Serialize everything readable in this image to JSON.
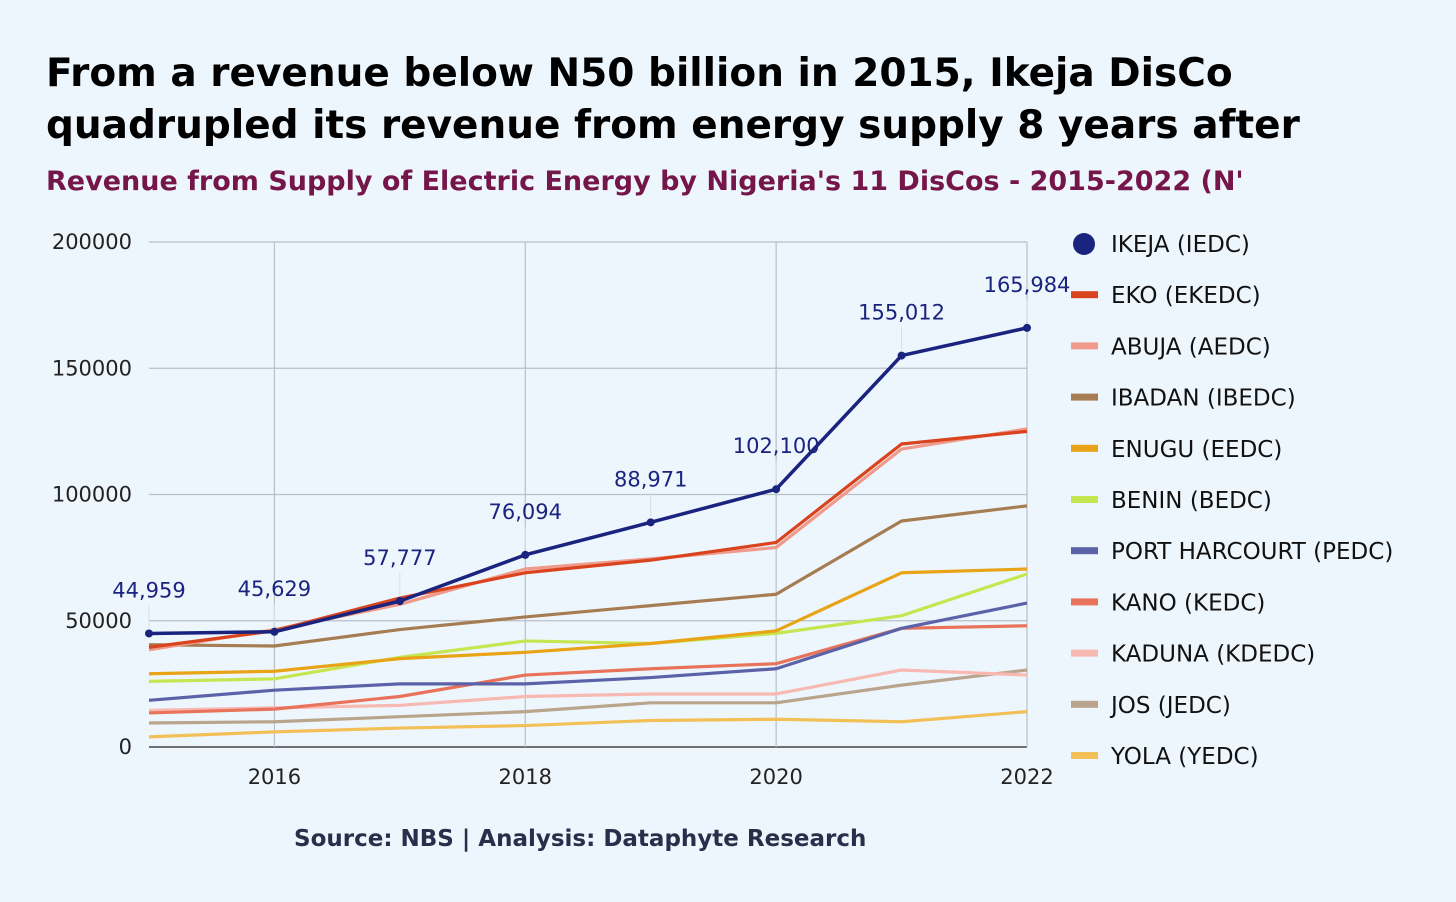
{
  "title": "From a revenue below N50 billion in 2015, Ikeja DisCo quadrupled its revenue from energy supply 8 years after",
  "subtitle": "Revenue from Supply of Electric Energy by Nigeria's 11 DisCos - 2015-2022 (N'",
  "source": "Source: NBS | Analysis: Dataphyte Research",
  "chart_data": {
    "type": "line",
    "x": [
      2015,
      2016,
      2017,
      2018,
      2019,
      2020,
      2021,
      2022
    ],
    "xticks": [
      "2016",
      "2018",
      "2020",
      "2022"
    ],
    "xlim": [
      2015,
      2022
    ],
    "ylim": [
      0,
      200000
    ],
    "yticks": [
      "0",
      "50000",
      "100000",
      "150000",
      "200000"
    ],
    "grid": true,
    "legend_position": "right",
    "series": [
      {
        "name": "IKEJA (IEDC)",
        "color": "#1a237e",
        "marker": true,
        "values": [
          44959,
          45629,
          57777,
          76094,
          88971,
          102100,
          155012,
          165984
        ],
        "labels": [
          "44,959",
          "45,629",
          "57,777",
          "76,094",
          "88,971",
          "102,100",
          "155,012",
          "165,984"
        ]
      },
      {
        "name": "EKO (EKEDC)",
        "color": "#d9441e",
        "values": [
          39500,
          46000,
          59000,
          69000,
          74000,
          81000,
          120000,
          125000
        ]
      },
      {
        "name": "ABUJA (AEDC)",
        "color": "#ef9a8a",
        "values": [
          38500,
          46500,
          56500,
          70500,
          74500,
          79000,
          118000,
          126000
        ]
      },
      {
        "name": "IBADAN (IBEDC)",
        "color": "#a67c52",
        "values": [
          40500,
          40000,
          46500,
          51500,
          56000,
          60500,
          89500,
          95500
        ]
      },
      {
        "name": "ENUGU (EEDC)",
        "color": "#e8a317",
        "values": [
          29000,
          30000,
          35000,
          37500,
          41000,
          46000,
          69000,
          70500
        ]
      },
      {
        "name": "BENIN (BEDC)",
        "color": "#c6e651",
        "values": [
          26000,
          27000,
          35500,
          42000,
          41000,
          45000,
          52000,
          68500
        ]
      },
      {
        "name": "PORT HARCOURT (PEDC)",
        "color": "#5c62a8",
        "values": [
          18500,
          22500,
          25000,
          25000,
          27500,
          31000,
          47000,
          57000
        ]
      },
      {
        "name": "KANO (KEDC)",
        "color": "#e8735a",
        "values": [
          13500,
          15000,
          20000,
          28500,
          31000,
          33000,
          47000,
          48000
        ]
      },
      {
        "name": "KADUNA (KDEDC)",
        "color": "#f7b9b2",
        "values": [
          14500,
          15500,
          16500,
          20000,
          21000,
          21000,
          30500,
          28500
        ]
      },
      {
        "name": "JOS (JEDC)",
        "color": "#b9a48c",
        "values": [
          9500,
          10000,
          12000,
          14000,
          17500,
          17500,
          24500,
          30500
        ]
      },
      {
        "name": "YOLA (YEDC)",
        "color": "#f2c057",
        "values": [
          4000,
          6000,
          7500,
          8500,
          10500,
          11000,
          10000,
          14000
        ]
      }
    ]
  }
}
